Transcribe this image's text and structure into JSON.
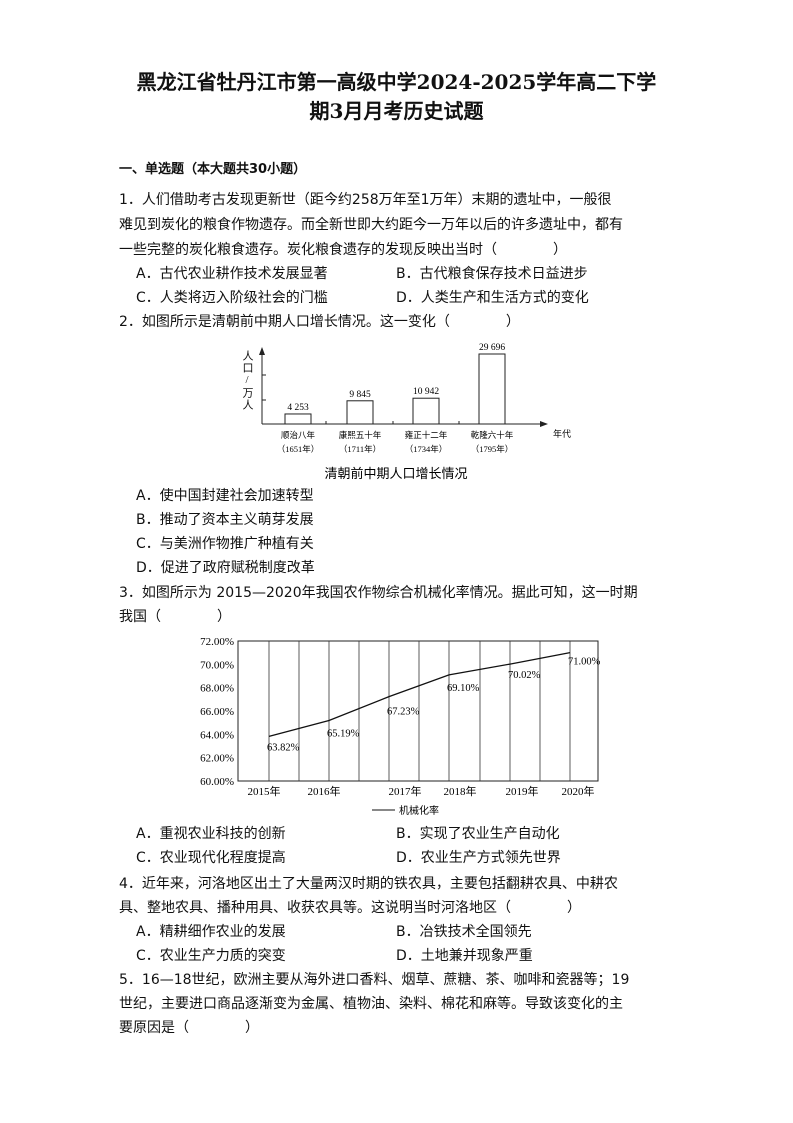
{
  "title": {
    "line1": "黑龙江省牡丹江市第一高级中学2024-2025学年高二下学",
    "line2": "期3月月考历史试题"
  },
  "section": "一、单选题（本大题共30小题）",
  "questions": [
    {
      "lines": [
        "1．人们借助考古发现更新世（距今约258万年至1万年）末期的遗址中，一般很",
        "难见到炭化的粮食作物遗存。而全新世即大约距今一万年以后的许多遗址中，都有",
        "一些完整的炭化粮食遗存。炭化粮食遗存的发现反映出当时（　　　　）"
      ],
      "options": [
        "A．古代农业耕作技术发展显著",
        "B．古代粮食保存技术日益进步",
        "C．人类将迈入阶级社会的门槛",
        "D．人类生产和生活方式的变化"
      ]
    },
    {
      "lines": [
        "2．如图所示是清朝前中期人口增长情况。这一变化（　　　　）"
      ],
      "options": [
        "A．使中国封建社会加速转型",
        "B．推动了资本主义萌芽发展",
        "C．与美洲作物推广种植有关",
        "D．促进了政府赋税制度改革"
      ]
    },
    {
      "lines": [
        "3．如图所示为 2015—2020年我国农作物综合机械化率情况。据此可知，这一时期",
        "我国（　　　　）"
      ],
      "options": [
        "A．重视农业科技的创新",
        "B．实现了农业生产自动化",
        "C．农业现代化程度提高",
        "D．农业生产方式领先世界"
      ]
    },
    {
      "lines": [
        "4．近年来，河洛地区出土了大量两汉时期的铁农具，主要包括翻耕农具、中耕农",
        "具、整地农具、播种用具、收获农具等。这说明当时河洛地区（　　　　）"
      ],
      "options": [
        "A．精耕细作农业的发展",
        "B．冶铁技术全国领先",
        "C．农业生产力质的突变",
        "D．土地兼并现象严重"
      ]
    },
    {
      "lines": [
        "5．16—18世纪，欧洲主要从海外进口香料、烟草、蔗糖、茶、咖啡和瓷器等；19",
        "世纪，主要进口商品逐渐变为金属、植物油、染料、棉花和麻等。导致该变化的主",
        "要原因是（　　　　）"
      ],
      "options": []
    }
  ],
  "chart_data": [
    {
      "type": "bar",
      "title": "清朝前中期人口增长情况",
      "ylabel": "人口/万人",
      "xlabel": "年代",
      "categories": [
        [
          "顺治八年",
          "（1651年）"
        ],
        [
          "康熙五十年",
          "（1711年）"
        ],
        [
          "雍正十二年",
          "（1734年）"
        ],
        [
          "乾隆六十年",
          "（1795年）"
        ]
      ],
      "values": [
        4253,
        9845,
        10942,
        29696
      ],
      "value_labels": [
        "4 253",
        "9 845",
        "10 942",
        "29 696"
      ]
    },
    {
      "type": "line",
      "categories": [
        "2015年",
        "2016年",
        "2017年",
        "2018年",
        "2019年",
        "2020年"
      ],
      "series": [
        {
          "name": "机械化率",
          "values": [
            63.82,
            65.19,
            67.23,
            69.1,
            70.02,
            71.0
          ]
        }
      ],
      "value_labels": [
        "63.82%",
        "65.19%",
        "67.23%",
        "69.10%",
        "70.02%",
        "71.00%"
      ],
      "ylim": [
        60,
        72
      ],
      "yticks": [
        "60.00%",
        "62.00%",
        "64.00%",
        "66.00%",
        "68.00%",
        "70.00%",
        "72.00%"
      ],
      "legend": "bottom"
    }
  ]
}
